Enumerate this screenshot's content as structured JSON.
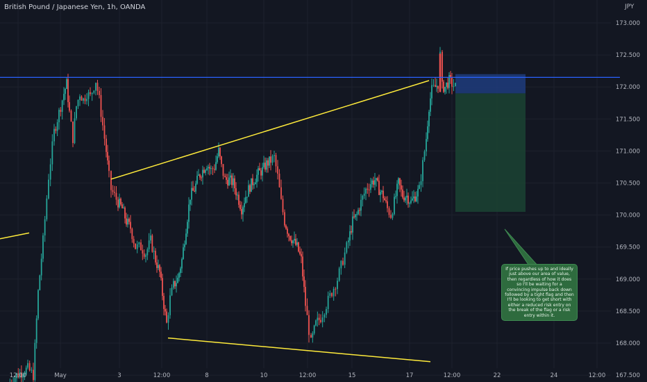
{
  "header": {
    "symbol_title": "British Pound / Japanese Yen, 1h, OANDA",
    "currency": "JPY"
  },
  "annotation": {
    "text": "If price pushes up to and ideally just above our area of value, then regardless of how it does so I'll be waiting for a convincing impulse back down followed by a tight flag and then I'll be looking to get short with either a reduced risk entry on the break of the flag or a risk entry within it."
  },
  "colors": {
    "background": "#131722",
    "up_candle": "#26a69a",
    "down_candle": "#ef5350",
    "trendline": "#ffeb3b",
    "level_line": "#2962ff",
    "stop_zone": "#1e3a78",
    "target_zone": "#1b4332",
    "note_bg": "#2e6b3e"
  },
  "chart_data": {
    "type": "candlestick",
    "title": "British Pound / Japanese Yen, 1h, OANDA",
    "ylabel": "JPY",
    "ylim": [
      167.3,
      173.2
    ],
    "y_ticks": [
      {
        "value": 173.0,
        "label": "173.000"
      },
      {
        "value": 172.5,
        "label": "172.500"
      },
      {
        "value": 172.0,
        "label": "172.000"
      },
      {
        "value": 171.5,
        "label": "171.500"
      },
      {
        "value": 171.0,
        "label": "171.000"
      },
      {
        "value": 170.5,
        "label": "170.500"
      },
      {
        "value": 170.0,
        "label": "170.000"
      },
      {
        "value": 169.5,
        "label": "169.500"
      },
      {
        "value": 169.0,
        "label": "169.000"
      },
      {
        "value": 168.5,
        "label": "168.500"
      },
      {
        "value": 168.0,
        "label": "168.000"
      },
      {
        "value": 167.5,
        "label": "167.500"
      }
    ],
    "x_range": [
      0,
      880
    ],
    "x_ticks": [
      {
        "x": 26,
        "label": "12:00"
      },
      {
        "x": 87,
        "label": "May"
      },
      {
        "x": 172,
        "label": "3"
      },
      {
        "x": 233,
        "label": "12:00"
      },
      {
        "x": 298,
        "label": "8"
      },
      {
        "x": 380,
        "label": "10"
      },
      {
        "x": 443,
        "label": "12:00"
      },
      {
        "x": 507,
        "label": "15"
      },
      {
        "x": 590,
        "label": "17"
      },
      {
        "x": 651,
        "label": "12:00"
      },
      {
        "x": 716,
        "label": "22"
      },
      {
        "x": 798,
        "label": "24"
      },
      {
        "x": 860,
        "label": "12:00"
      }
    ],
    "price_path": [
      [
        12,
        167.35
      ],
      [
        24,
        167.5
      ],
      [
        40,
        167.6
      ],
      [
        48,
        167.5
      ],
      [
        55,
        168.8
      ],
      [
        62,
        169.6
      ],
      [
        70,
        170.6
      ],
      [
        78,
        171.3
      ],
      [
        85,
        171.6
      ],
      [
        92,
        171.9
      ],
      [
        96,
        172.05
      ],
      [
        100,
        171.6
      ],
      [
        105,
        171.2
      ],
      [
        110,
        171.7
      ],
      [
        115,
        171.9
      ],
      [
        120,
        171.8
      ],
      [
        125,
        171.9
      ],
      [
        130,
        171.85
      ],
      [
        138,
        172.1
      ],
      [
        143,
        171.8
      ],
      [
        148,
        171.4
      ],
      [
        153,
        171.0
      ],
      [
        157,
        170.6
      ],
      [
        160,
        170.4
      ],
      [
        165,
        170.3
      ],
      [
        170,
        170.2
      ],
      [
        176,
        170.1
      ],
      [
        182,
        169.9
      ],
      [
        188,
        169.8
      ],
      [
        195,
        169.5
      ],
      [
        203,
        169.5
      ],
      [
        210,
        169.4
      ],
      [
        217,
        169.6
      ],
      [
        224,
        169.3
      ],
      [
        230,
        169.1
      ],
      [
        236,
        168.6
      ],
      [
        240,
        168.3
      ],
      [
        245,
        168.7
      ],
      [
        250,
        168.9
      ],
      [
        256,
        169.0
      ],
      [
        262,
        169.3
      ],
      [
        268,
        169.8
      ],
      [
        274,
        170.3
      ],
      [
        280,
        170.4
      ],
      [
        286,
        170.6
      ],
      [
        292,
        170.7
      ],
      [
        298,
        170.8
      ],
      [
        304,
        170.7
      ],
      [
        309,
        170.75
      ],
      [
        315,
        171.0
      ],
      [
        319,
        170.75
      ],
      [
        324,
        170.55
      ],
      [
        330,
        170.55
      ],
      [
        336,
        170.5
      ],
      [
        342,
        170.3
      ],
      [
        348,
        170.1
      ],
      [
        354,
        170.3
      ],
      [
        360,
        170.45
      ],
      [
        366,
        170.55
      ],
      [
        372,
        170.65
      ],
      [
        378,
        170.7
      ],
      [
        384,
        170.8
      ],
      [
        390,
        170.85
      ],
      [
        395,
        170.9
      ],
      [
        400,
        170.6
      ],
      [
        405,
        170.2
      ],
      [
        410,
        169.9
      ],
      [
        416,
        169.7
      ],
      [
        422,
        169.6
      ],
      [
        428,
        169.5
      ],
      [
        434,
        169.3
      ],
      [
        440,
        168.6
      ],
      [
        445,
        168.2
      ],
      [
        448,
        168.0
      ],
      [
        455,
        168.3
      ],
      [
        462,
        168.4
      ],
      [
        470,
        168.6
      ],
      [
        478,
        168.8
      ],
      [
        486,
        169.0
      ],
      [
        494,
        169.3
      ],
      [
        502,
        169.6
      ],
      [
        508,
        169.9
      ],
      [
        514,
        170.0
      ],
      [
        520,
        170.2
      ],
      [
        527,
        170.4
      ],
      [
        534,
        170.5
      ],
      [
        540,
        170.55
      ],
      [
        546,
        170.4
      ],
      [
        552,
        170.3
      ],
      [
        558,
        170.1
      ],
      [
        563,
        170.0
      ],
      [
        568,
        170.2
      ],
      [
        574,
        170.5
      ],
      [
        580,
        170.3
      ],
      [
        586,
        170.3
      ],
      [
        592,
        170.2
      ],
      [
        598,
        170.3
      ],
      [
        604,
        170.4
      ],
      [
        609,
        170.8
      ],
      [
        614,
        171.2
      ],
      [
        618,
        171.7
      ],
      [
        622,
        171.95
      ],
      [
        627,
        172.0
      ],
      [
        631,
        172.05
      ],
      [
        634,
        172.5
      ],
      [
        637,
        172.0
      ],
      [
        641,
        172.0
      ],
      [
        647,
        172.1
      ],
      [
        651,
        172.05
      ],
      [
        656,
        172.0
      ]
    ],
    "trendlines": [
      {
        "name": "left-fragment",
        "x1": 0,
        "y1": 169.63,
        "x2": 42,
        "y2": 169.72
      },
      {
        "name": "upper-trendline",
        "x1": 160,
        "y1": 170.56,
        "x2": 618,
        "y2": 172.1
      },
      {
        "name": "lower-trendline",
        "x1": 242,
        "y1": 168.08,
        "x2": 620,
        "y2": 167.71
      }
    ],
    "horizontal_level": 172.15,
    "position": {
      "x_start": 656,
      "x_end": 757,
      "stop_top": 172.2,
      "entry": 171.9,
      "target": 170.05
    },
    "callout": {
      "from": [
        727,
        169.78
      ],
      "to": [
        780,
        169.05
      ]
    }
  }
}
